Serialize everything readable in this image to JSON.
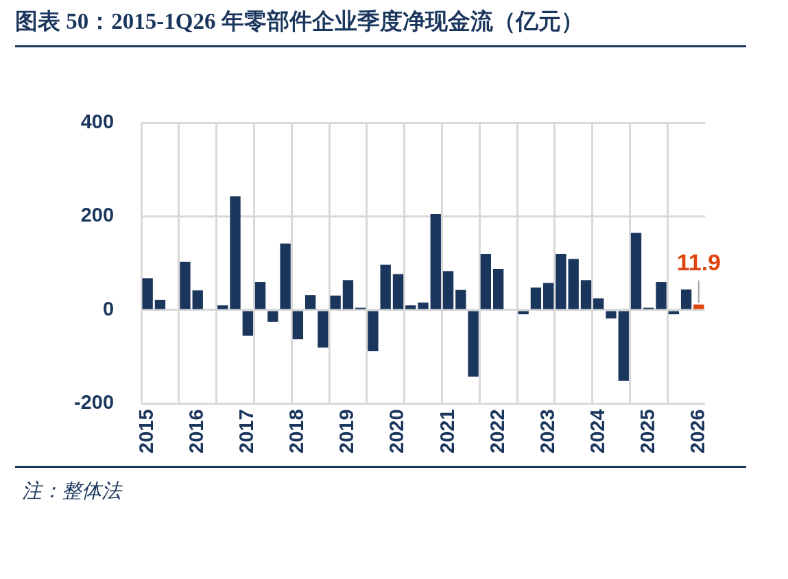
{
  "chart_data": {
    "type": "bar",
    "title": "图表 50：2015-1Q26 年零部件企业季度净现金流（亿元）",
    "categories": [
      "2015",
      null,
      null,
      null,
      "2016",
      null,
      null,
      null,
      "2017",
      null,
      null,
      null,
      "2018",
      null,
      null,
      null,
      "2019",
      null,
      null,
      null,
      "2020",
      null,
      null,
      null,
      "2021",
      null,
      null,
      null,
      "2022",
      null,
      null,
      null,
      "2023",
      null,
      null,
      null,
      "2024",
      null,
      null,
      null,
      "2025",
      null,
      null,
      null,
      "2026"
    ],
    "values": [
      68,
      22,
      null,
      103,
      42,
      null,
      10,
      243,
      -55,
      60,
      -25,
      142,
      -62,
      32,
      -80,
      31,
      64,
      5,
      -88,
      97,
      77,
      10,
      16,
      205,
      83,
      43,
      -142,
      120,
      88,
      null,
      -9,
      48,
      58,
      120,
      109,
      64,
      25,
      -18,
      -151,
      165,
      5,
      60,
      -9,
      44,
      11.9
    ],
    "colors": [
      "#1b365d",
      "#1b365d",
      "#1b365d",
      "#1b365d",
      "#1b365d",
      "#1b365d",
      "#1b365d",
      "#1b365d",
      "#1b365d",
      "#1b365d",
      "#1b365d",
      "#1b365d",
      "#1b365d",
      "#1b365d",
      "#1b365d",
      "#1b365d",
      "#1b365d",
      "#1b365d",
      "#1b365d",
      "#1b365d",
      "#1b365d",
      "#1b365d",
      "#1b365d",
      "#1b365d",
      "#1b365d",
      "#1b365d",
      "#1b365d",
      "#1b365d",
      "#1b365d",
      "#1b365d",
      "#1b365d",
      "#1b365d",
      "#1b365d",
      "#1b365d",
      "#1b365d",
      "#1b365d",
      "#1b365d",
      "#1b365d",
      "#1b365d",
      "#1b365d",
      "#1b365d",
      "#1b365d",
      "#1b365d",
      "#1b365d",
      "#e0440e"
    ],
    "value_labels": [
      null,
      null,
      null,
      null,
      null,
      null,
      null,
      null,
      null,
      null,
      null,
      null,
      null,
      null,
      null,
      null,
      null,
      null,
      null,
      null,
      null,
      null,
      null,
      null,
      null,
      null,
      null,
      null,
      null,
      null,
      null,
      null,
      null,
      null,
      null,
      null,
      null,
      null,
      null,
      null,
      null,
      null,
      null,
      null,
      "11.9"
    ],
    "ylim": [
      -200,
      400
    ],
    "yticks": [
      -200,
      0,
      200,
      400
    ],
    "grid": true,
    "legend": false,
    "annotations": [
      "注：整体法"
    ]
  }
}
